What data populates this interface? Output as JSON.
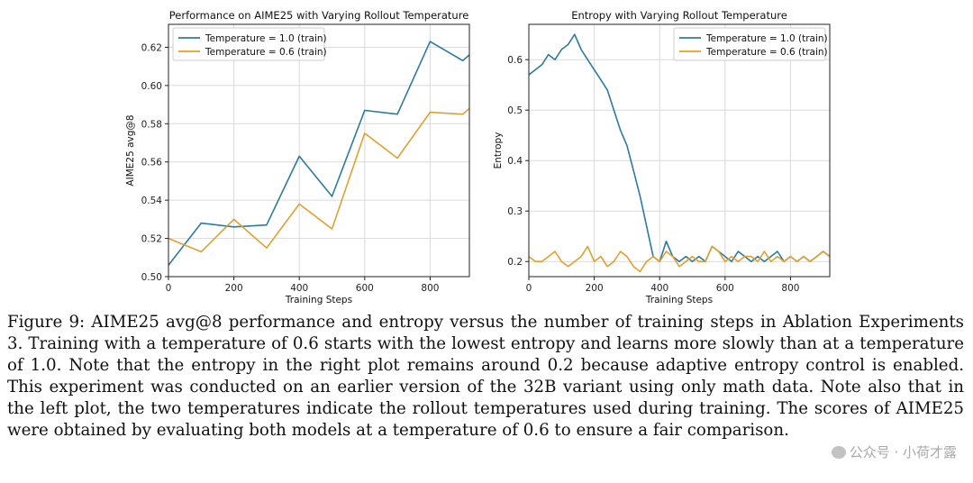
{
  "chart_data": [
    {
      "type": "line",
      "title": "Performance on AIME25 with Varying Rollout Temperature",
      "xlabel": "Training Steps",
      "ylabel": "AIME25 avg@8",
      "xlim": [
        0,
        920
      ],
      "ylim": [
        0.5,
        0.632
      ],
      "xticks": [
        0,
        200,
        400,
        600,
        800
      ],
      "yticks": [
        0.5,
        0.52,
        0.54,
        0.56,
        0.58,
        0.6,
        0.62
      ],
      "grid": true,
      "legend": "top-left",
      "series": [
        {
          "name": "Temperature = 1.0 (train)",
          "color": "#2e7a9c",
          "x": [
            0,
            100,
            200,
            300,
            400,
            500,
            600,
            700,
            800,
            900,
            920
          ],
          "y": [
            0.506,
            0.528,
            0.526,
            0.527,
            0.563,
            0.542,
            0.587,
            0.585,
            0.623,
            0.613,
            0.616
          ]
        },
        {
          "name": "Temperature = 0.6 (train)",
          "color": "#e0a030",
          "x": [
            0,
            100,
            200,
            300,
            400,
            500,
            600,
            700,
            800,
            900,
            920
          ],
          "y": [
            0.52,
            0.513,
            0.53,
            0.515,
            0.538,
            0.525,
            0.575,
            0.562,
            0.586,
            0.585,
            0.588
          ]
        }
      ]
    },
    {
      "type": "line",
      "title": "Entropy with Varying Rollout Temperature",
      "xlabel": "Training Steps",
      "ylabel": "Entropy",
      "xlim": [
        0,
        920
      ],
      "ylim": [
        0.17,
        0.67
      ],
      "xticks": [
        0,
        200,
        400,
        600,
        800
      ],
      "yticks": [
        0.2,
        0.3,
        0.4,
        0.5,
        0.6
      ],
      "grid": true,
      "legend": "top-right",
      "series": [
        {
          "name": "Temperature = 1.0 (train)",
          "color": "#2e7a9c",
          "x": [
            0,
            20,
            40,
            60,
            80,
            100,
            120,
            140,
            160,
            180,
            200,
            220,
            240,
            260,
            280,
            300,
            320,
            340,
            360,
            380,
            400,
            420,
            440,
            460,
            480,
            500,
            520,
            540,
            560,
            580,
            600,
            620,
            640,
            660,
            680,
            700,
            720,
            740,
            760,
            780,
            800,
            820,
            840,
            860,
            880,
            900,
            920
          ],
          "y": [
            0.57,
            0.58,
            0.59,
            0.61,
            0.6,
            0.62,
            0.63,
            0.65,
            0.62,
            0.6,
            0.58,
            0.56,
            0.54,
            0.5,
            0.46,
            0.43,
            0.38,
            0.33,
            0.27,
            0.21,
            0.2,
            0.24,
            0.21,
            0.2,
            0.21,
            0.2,
            0.21,
            0.2,
            0.23,
            0.22,
            0.21,
            0.2,
            0.22,
            0.21,
            0.2,
            0.21,
            0.2,
            0.21,
            0.22,
            0.2,
            0.21,
            0.2,
            0.21,
            0.2,
            0.21,
            0.22,
            0.21
          ]
        },
        {
          "name": "Temperature = 0.6 (train)",
          "color": "#e0a030",
          "x": [
            0,
            20,
            40,
            60,
            80,
            100,
            120,
            140,
            160,
            180,
            200,
            220,
            240,
            260,
            280,
            300,
            320,
            340,
            360,
            380,
            400,
            420,
            440,
            460,
            480,
            500,
            520,
            540,
            560,
            580,
            600,
            620,
            640,
            660,
            680,
            700,
            720,
            740,
            760,
            780,
            800,
            820,
            840,
            860,
            880,
            900,
            920
          ],
          "y": [
            0.21,
            0.2,
            0.2,
            0.21,
            0.22,
            0.2,
            0.19,
            0.2,
            0.21,
            0.23,
            0.2,
            0.21,
            0.19,
            0.2,
            0.22,
            0.21,
            0.19,
            0.18,
            0.2,
            0.21,
            0.2,
            0.22,
            0.21,
            0.19,
            0.2,
            0.21,
            0.2,
            0.2,
            0.23,
            0.22,
            0.2,
            0.21,
            0.2,
            0.21,
            0.21,
            0.2,
            0.22,
            0.2,
            0.21,
            0.2,
            0.21,
            0.2,
            0.21,
            0.2,
            0.21,
            0.22,
            0.21
          ]
        }
      ]
    }
  ],
  "caption": "Figure 9: AIME25 avg@8 performance and entropy versus the number of training steps in Ablation Experiments 3. Training with a temperature of 0.6 starts with the lowest entropy and learns more slowly than at a temperature of 1.0. Note that the entropy in the right plot remains around 0.2 because adaptive entropy control is enabled. This experiment was conducted on an earlier version of the 32B variant using only math data. Note also that in the left plot, the two temperatures indicate the rollout temperatures used during training. The scores of AIME25 were obtained by evaluating both models at a temperature of 0.6 to ensure a fair comparison.",
  "watermark": "公众号 · 小荷才露"
}
